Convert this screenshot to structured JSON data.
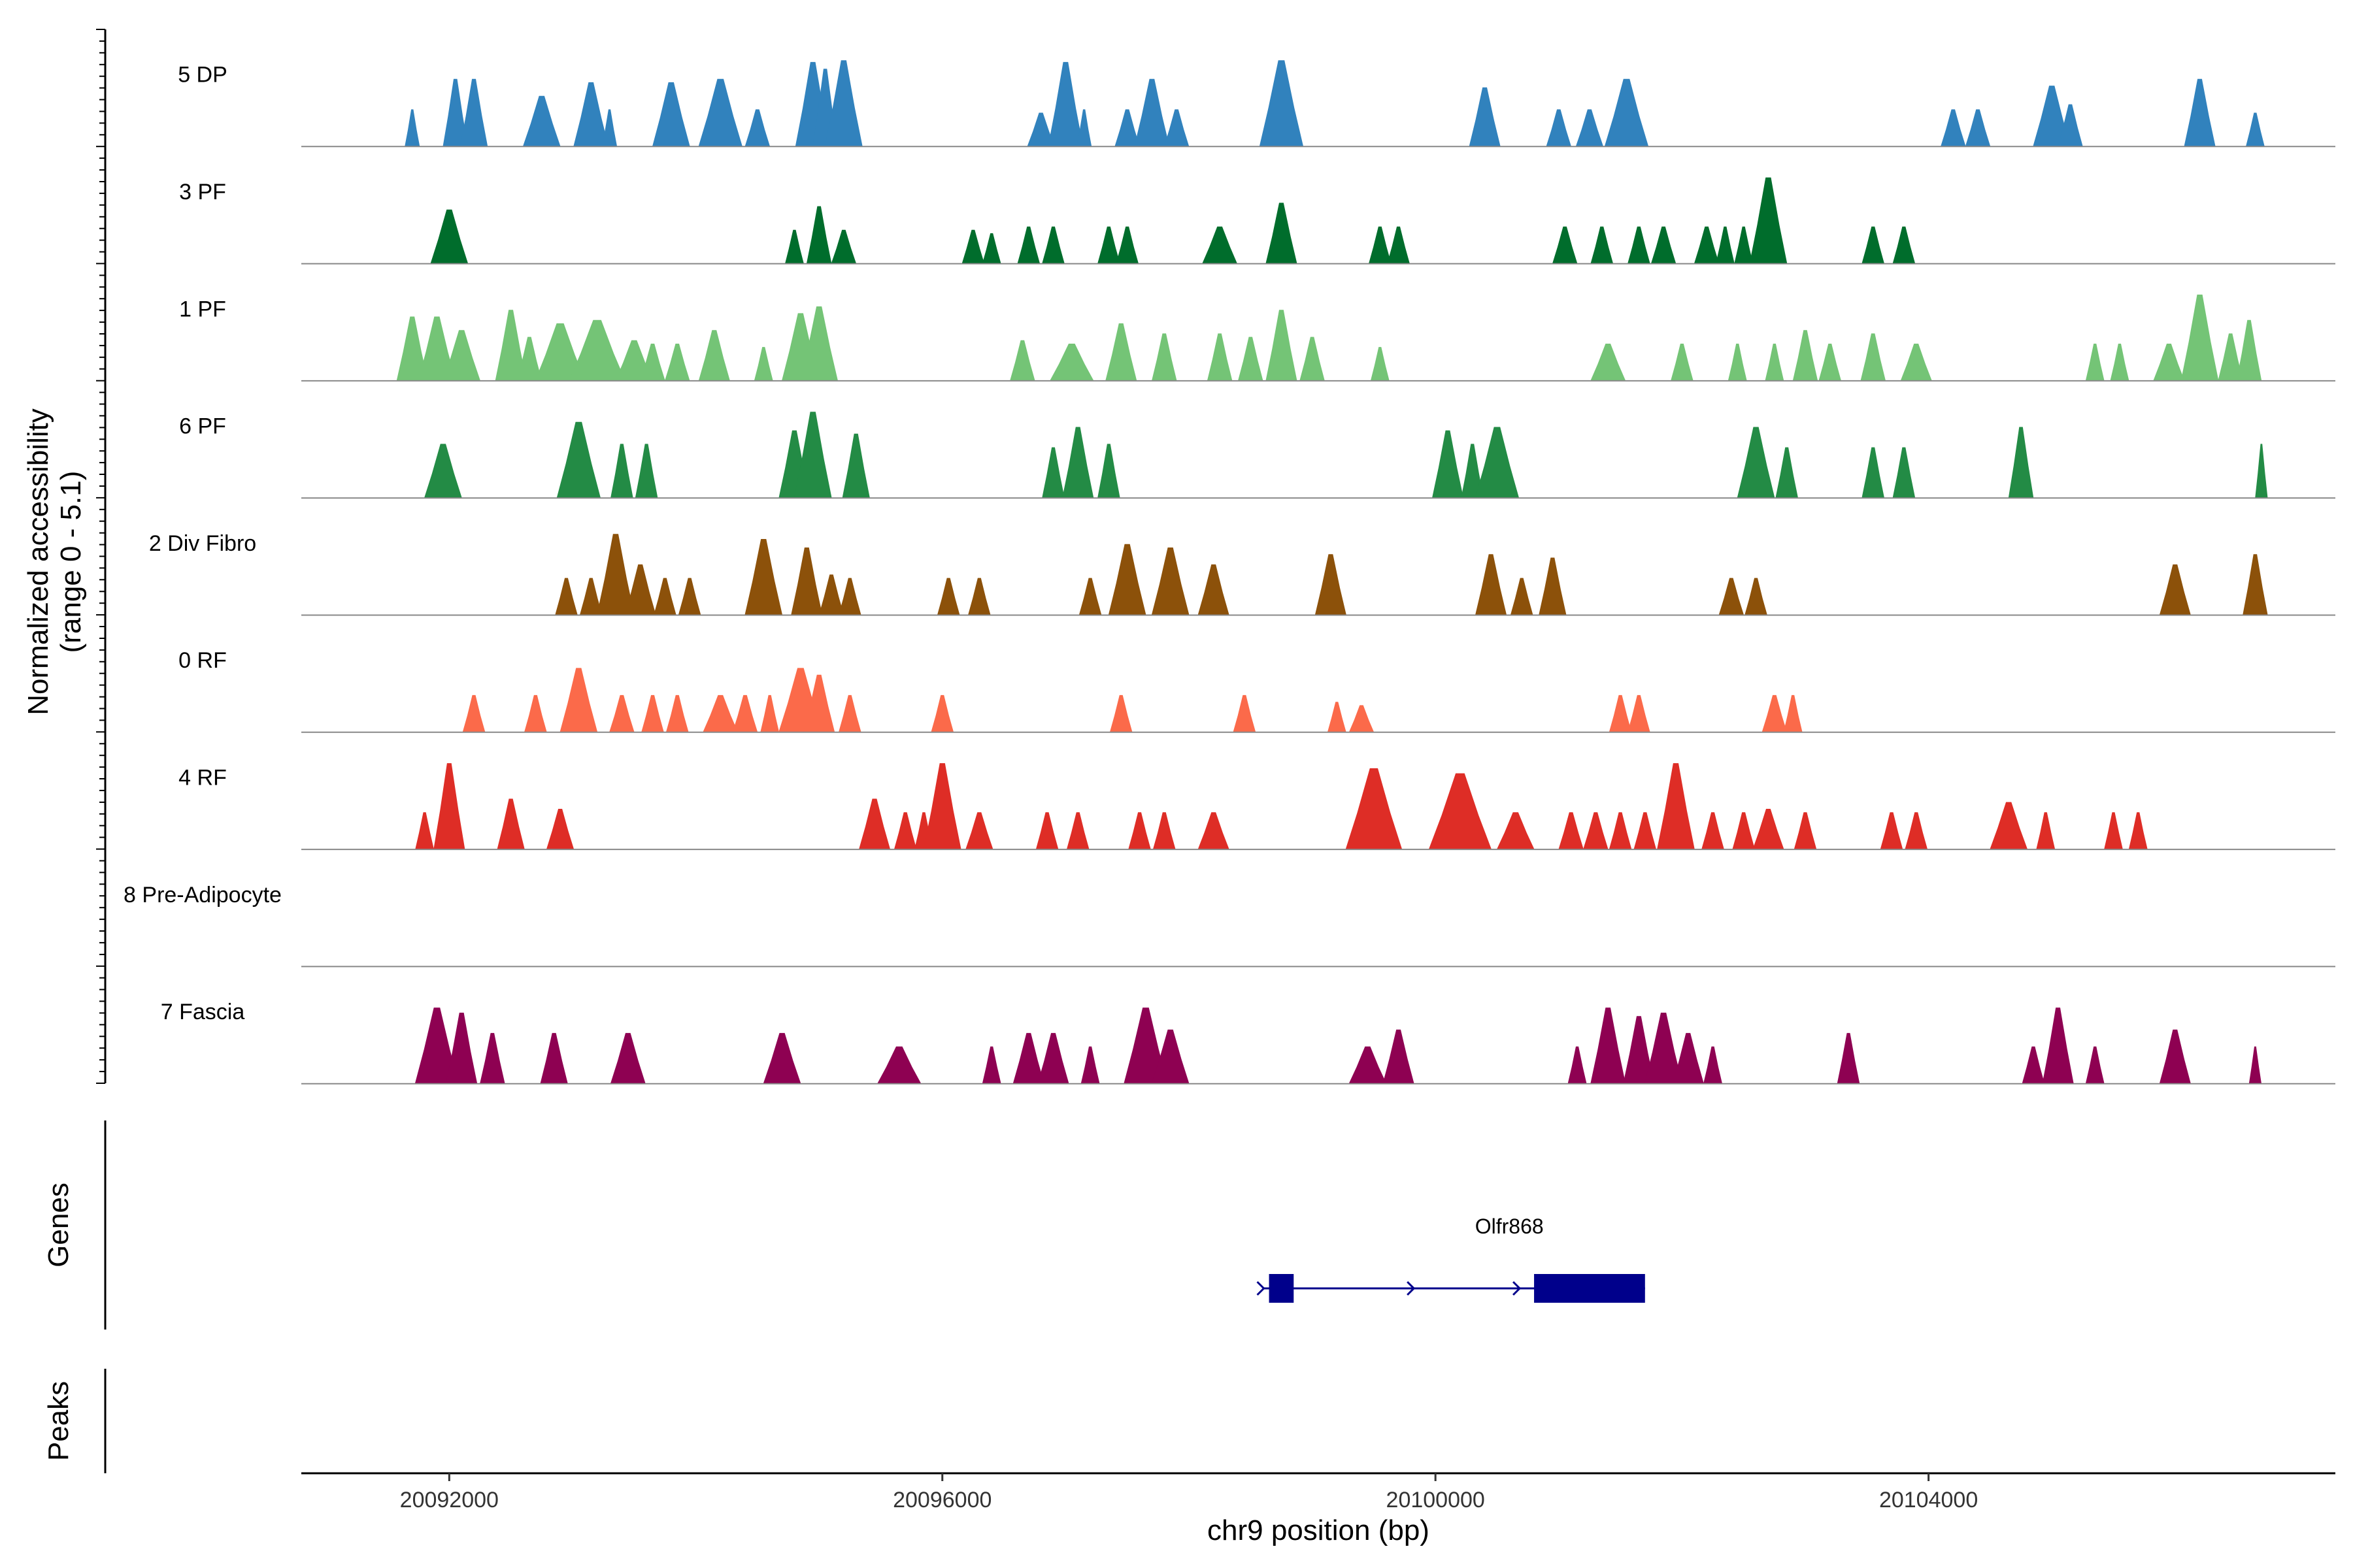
{
  "chart_data": {
    "type": "coverage",
    "x_axis": {
      "label": "chr9 position (bp)",
      "range": [
        20090800,
        20107300
      ],
      "ticks": [
        20092000,
        20096000,
        20100000,
        20104000
      ],
      "tick_labels": [
        "20092000",
        "20096000",
        "20100000",
        "20104000"
      ]
    },
    "y_axis": {
      "label_line1": "Normalized accessibility",
      "label_line2": "(range 0 - 5.1)",
      "range": [
        0,
        5.1
      ]
    },
    "tracks": [
      {
        "name": "5 DP",
        "color": "#3182bd",
        "peaks": [
          [
            20091700,
            12,
            2.2
          ],
          [
            20092050,
            20,
            4.0
          ],
          [
            20092200,
            22,
            4.0
          ],
          [
            20092750,
            30,
            3.0
          ],
          [
            20093150,
            28,
            3.8
          ],
          [
            20093300,
            12,
            2.2
          ],
          [
            20093800,
            30,
            3.8
          ],
          [
            20094200,
            35,
            4.0
          ],
          [
            20094500,
            20,
            2.2
          ],
          [
            20094950,
            28,
            5.0
          ],
          [
            20095050,
            20,
            4.6
          ],
          [
            20095200,
            30,
            5.1
          ],
          [
            20096800,
            22,
            2.0
          ],
          [
            20097000,
            28,
            5.0
          ],
          [
            20097150,
            12,
            2.2
          ],
          [
            20097500,
            20,
            2.2
          ],
          [
            20097700,
            28,
            4.0
          ],
          [
            20097900,
            20,
            2.2
          ],
          [
            20098750,
            35,
            5.1
          ],
          [
            20100400,
            25,
            3.5
          ],
          [
            20101000,
            20,
            2.2
          ],
          [
            20101250,
            22,
            2.2
          ],
          [
            20101550,
            35,
            4.0
          ],
          [
            20104200,
            20,
            2.2
          ],
          [
            20104400,
            20,
            2.2
          ],
          [
            20105000,
            30,
            3.6
          ],
          [
            20105150,
            20,
            2.5
          ],
          [
            20106200,
            25,
            4.0
          ],
          [
            20106650,
            15,
            2.0
          ]
        ]
      },
      {
        "name": "3 PF",
        "color": "#006d2c",
        "peaks": [
          [
            20092000,
            30,
            3.2
          ],
          [
            20094800,
            15,
            2.0
          ],
          [
            20095000,
            20,
            3.4
          ],
          [
            20095200,
            20,
            2.0
          ],
          [
            20096250,
            18,
            2.0
          ],
          [
            20096400,
            15,
            1.8
          ],
          [
            20096700,
            18,
            2.2
          ],
          [
            20096900,
            18,
            2.2
          ],
          [
            20097350,
            18,
            2.2
          ],
          [
            20097500,
            18,
            2.2
          ],
          [
            20098250,
            28,
            2.2
          ],
          [
            20098750,
            25,
            3.6
          ],
          [
            20099550,
            18,
            2.2
          ],
          [
            20099700,
            18,
            2.2
          ],
          [
            20101050,
            20,
            2.2
          ],
          [
            20101350,
            18,
            2.2
          ],
          [
            20101650,
            18,
            2.2
          ],
          [
            20101850,
            20,
            2.2
          ],
          [
            20102200,
            20,
            2.2
          ],
          [
            20102350,
            15,
            2.2
          ],
          [
            20102500,
            15,
            2.2
          ],
          [
            20102700,
            30,
            5.1
          ],
          [
            20103550,
            18,
            2.2
          ],
          [
            20103800,
            18,
            2.2
          ]
        ]
      },
      {
        "name": "1 PF",
        "color": "#74c476",
        "peaks": [
          [
            20091700,
            25,
            3.8
          ],
          [
            20091900,
            30,
            3.8
          ],
          [
            20092100,
            30,
            3.0
          ],
          [
            20092500,
            25,
            4.2
          ],
          [
            20092650,
            20,
            2.6
          ],
          [
            20092900,
            40,
            3.4
          ],
          [
            20093200,
            45,
            3.6
          ],
          [
            20093500,
            30,
            2.4
          ],
          [
            20093650,
            20,
            2.2
          ],
          [
            20093850,
            20,
            2.2
          ],
          [
            20094150,
            25,
            3.0
          ],
          [
            20094550,
            15,
            2.0
          ],
          [
            20094850,
            30,
            4.0
          ],
          [
            20095000,
            30,
            4.4
          ],
          [
            20096650,
            20,
            2.4
          ],
          [
            20097050,
            35,
            2.2
          ],
          [
            20097450,
            25,
            3.4
          ],
          [
            20097800,
            20,
            2.8
          ],
          [
            20098250,
            20,
            2.8
          ],
          [
            20098500,
            20,
            2.6
          ],
          [
            20098750,
            25,
            4.2
          ],
          [
            20099000,
            20,
            2.6
          ],
          [
            20099550,
            15,
            2.0
          ],
          [
            20101400,
            28,
            2.2
          ],
          [
            20102000,
            18,
            2.2
          ],
          [
            20102450,
            15,
            2.2
          ],
          [
            20102750,
            15,
            2.2
          ],
          [
            20103000,
            20,
            3.0
          ],
          [
            20103200,
            18,
            2.2
          ],
          [
            20103550,
            20,
            2.8
          ],
          [
            20103900,
            25,
            2.2
          ],
          [
            20105350,
            15,
            2.2
          ],
          [
            20105550,
            15,
            2.2
          ],
          [
            20105950,
            25,
            2.2
          ],
          [
            20106200,
            30,
            5.1
          ],
          [
            20106450,
            20,
            2.8
          ],
          [
            20106600,
            20,
            3.6
          ]
        ]
      },
      {
        "name": "6 PF",
        "color": "#238b45",
        "peaks": [
          [
            20091950,
            30,
            3.2
          ],
          [
            20093050,
            35,
            4.5
          ],
          [
            20093400,
            18,
            3.2
          ],
          [
            20093600,
            18,
            3.2
          ],
          [
            20094800,
            25,
            4.0
          ],
          [
            20094950,
            30,
            5.1
          ],
          [
            20095300,
            22,
            3.8
          ],
          [
            20096900,
            18,
            3.0
          ],
          [
            20097100,
            25,
            4.2
          ],
          [
            20097350,
            18,
            3.2
          ],
          [
            20100100,
            25,
            4.0
          ],
          [
            20100300,
            18,
            3.2
          ],
          [
            20100500,
            35,
            4.2
          ],
          [
            20102600,
            30,
            4.2
          ],
          [
            20102850,
            18,
            3.0
          ],
          [
            20103550,
            18,
            3.0
          ],
          [
            20103800,
            18,
            3.0
          ],
          [
            20104750,
            20,
            4.2
          ],
          [
            20106700,
            10,
            3.2
          ]
        ]
      },
      {
        "name": "2 Div Fibro",
        "color": "#8c510a",
        "peaks": [
          [
            20092950,
            18,
            2.2
          ],
          [
            20093150,
            18,
            2.2
          ],
          [
            20093350,
            30,
            4.8
          ],
          [
            20093550,
            25,
            3.0
          ],
          [
            20093750,
            18,
            2.2
          ],
          [
            20093950,
            18,
            2.2
          ],
          [
            20094550,
            30,
            4.5
          ],
          [
            20094900,
            25,
            4.0
          ],
          [
            20095100,
            20,
            2.4
          ],
          [
            20095250,
            18,
            2.2
          ],
          [
            20096050,
            18,
            2.2
          ],
          [
            20096300,
            18,
            2.2
          ],
          [
            20097200,
            18,
            2.2
          ],
          [
            20097500,
            30,
            4.2
          ],
          [
            20097850,
            30,
            4.0
          ],
          [
            20098200,
            25,
            3.0
          ],
          [
            20099150,
            25,
            3.6
          ],
          [
            20100450,
            25,
            3.6
          ],
          [
            20100700,
            18,
            2.2
          ],
          [
            20100950,
            22,
            3.4
          ],
          [
            20102400,
            20,
            2.2
          ],
          [
            20102600,
            18,
            2.2
          ],
          [
            20106000,
            25,
            3.0
          ],
          [
            20106650,
            20,
            3.6
          ]
        ]
      },
      {
        "name": "0 RF",
        "color": "#fb6a4a",
        "peaks": [
          [
            20092200,
            18,
            2.2
          ],
          [
            20092700,
            18,
            2.2
          ],
          [
            20093050,
            30,
            3.8
          ],
          [
            20093400,
            20,
            2.2
          ],
          [
            20093650,
            18,
            2.2
          ],
          [
            20093850,
            18,
            2.2
          ],
          [
            20094200,
            28,
            2.2
          ],
          [
            20094400,
            20,
            2.2
          ],
          [
            20094600,
            15,
            2.2
          ],
          [
            20094850,
            35,
            3.8
          ],
          [
            20095000,
            25,
            3.4
          ],
          [
            20095250,
            18,
            2.2
          ],
          [
            20096000,
            18,
            2.2
          ],
          [
            20097450,
            18,
            2.2
          ],
          [
            20098450,
            18,
            2.2
          ],
          [
            20099200,
            15,
            1.8
          ],
          [
            20099400,
            20,
            1.6
          ],
          [
            20101500,
            18,
            2.2
          ],
          [
            20101650,
            18,
            2.2
          ],
          [
            20102750,
            20,
            2.2
          ],
          [
            20102900,
            15,
            2.2
          ]
        ]
      },
      {
        "name": "4 RF",
        "color": "#de2d26",
        "peaks": [
          [
            20091800,
            15,
            2.2
          ],
          [
            20092000,
            25,
            5.1
          ],
          [
            20092500,
            22,
            3.0
          ],
          [
            20092900,
            22,
            2.4
          ],
          [
            20095450,
            25,
            3.0
          ],
          [
            20095700,
            18,
            2.2
          ],
          [
            20095850,
            15,
            2.2
          ],
          [
            20096000,
            30,
            5.1
          ],
          [
            20096300,
            22,
            2.2
          ],
          [
            20096850,
            18,
            2.2
          ],
          [
            20097100,
            18,
            2.2
          ],
          [
            20097600,
            18,
            2.2
          ],
          [
            20097800,
            18,
            2.2
          ],
          [
            20098200,
            25,
            2.2
          ],
          [
            20099500,
            45,
            4.8
          ],
          [
            20100200,
            50,
            4.5
          ],
          [
            20100650,
            30,
            2.2
          ],
          [
            20101100,
            20,
            2.2
          ],
          [
            20101300,
            20,
            2.2
          ],
          [
            20101500,
            18,
            2.2
          ],
          [
            20101700,
            18,
            2.2
          ],
          [
            20101950,
            30,
            5.1
          ],
          [
            20102250,
            18,
            2.2
          ],
          [
            20102500,
            18,
            2.2
          ],
          [
            20102700,
            25,
            2.4
          ],
          [
            20103000,
            18,
            2.2
          ],
          [
            20103700,
            18,
            2.2
          ],
          [
            20103900,
            18,
            2.2
          ],
          [
            20104650,
            30,
            2.8
          ],
          [
            20104950,
            15,
            2.2
          ],
          [
            20105500,
            15,
            2.2
          ],
          [
            20105700,
            15,
            2.2
          ]
        ]
      },
      {
        "name": "8 Pre-Adipocyte",
        "color": "#54278f",
        "peaks": []
      },
      {
        "name": "7 Fascia",
        "color": "#8e0152",
        "peaks": [
          [
            20091900,
            35,
            4.5
          ],
          [
            20092100,
            25,
            4.2
          ],
          [
            20092350,
            20,
            3.0
          ],
          [
            20092850,
            22,
            3.0
          ],
          [
            20093450,
            28,
            3.0
          ],
          [
            20094700,
            30,
            3.0
          ],
          [
            20095650,
            35,
            2.2
          ],
          [
            20096400,
            15,
            2.2
          ],
          [
            20096700,
            25,
            3.0
          ],
          [
            20096900,
            25,
            3.0
          ],
          [
            20097200,
            15,
            2.2
          ],
          [
            20097650,
            35,
            4.5
          ],
          [
            20097850,
            30,
            3.2
          ],
          [
            20099450,
            30,
            2.2
          ],
          [
            20099700,
            25,
            3.2
          ],
          [
            20101150,
            15,
            2.2
          ],
          [
            20101400,
            28,
            4.5
          ],
          [
            20101650,
            25,
            4.0
          ],
          [
            20101850,
            30,
            4.2
          ],
          [
            20102050,
            25,
            3.0
          ],
          [
            20102250,
            15,
            2.2
          ],
          [
            20103350,
            18,
            3.0
          ],
          [
            20104850,
            18,
            2.2
          ],
          [
            20105050,
            25,
            4.5
          ],
          [
            20105350,
            15,
            2.2
          ],
          [
            20106000,
            25,
            3.2
          ],
          [
            20106650,
            10,
            2.2
          ]
        ]
      }
    ],
    "genes": [
      {
        "name": "Olfr868",
        "start": 20098650,
        "end": 20101700,
        "strand": "+",
        "exons": [
          [
            20098650,
            20098850
          ],
          [
            20100800,
            20101700
          ]
        ]
      }
    ],
    "gene_panel_label": "Genes",
    "peak_panel_label": "Peaks",
    "peak_regions": []
  }
}
